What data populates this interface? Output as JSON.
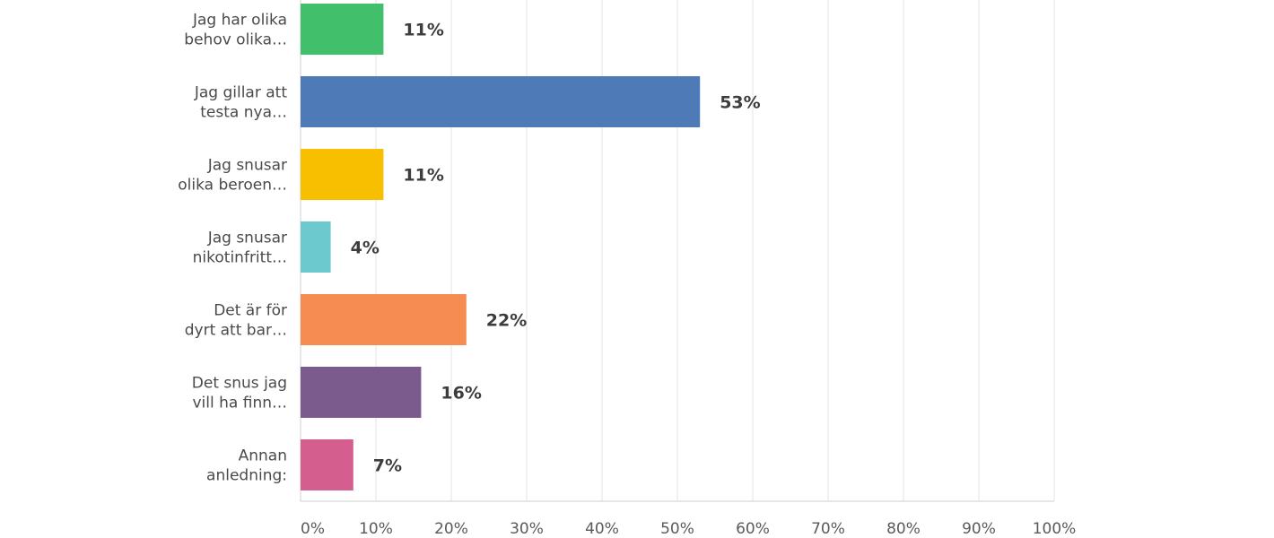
{
  "chart_data": {
    "type": "bar",
    "orientation": "horizontal",
    "title": "",
    "xlabel": "",
    "ylabel": "",
    "xlim": [
      0,
      100
    ],
    "grid": true,
    "categories": [
      {
        "lines": [
          "Jag har olika",
          "behov olika…"
        ],
        "value": 11,
        "value_label": "11%",
        "color": "#41bf6a"
      },
      {
        "lines": [
          "Jag gillar att",
          "testa nya…"
        ],
        "value": 53,
        "value_label": "53%",
        "color": "#4e7ab7"
      },
      {
        "lines": [
          "Jag snusar",
          "olika beroen…"
        ],
        "value": 11,
        "value_label": "11%",
        "color": "#f7bf00"
      },
      {
        "lines": [
          "Jag snusar",
          "nikotinfritt…"
        ],
        "value": 4,
        "value_label": "4%",
        "color": "#6cc9cd"
      },
      {
        "lines": [
          "Det är för",
          "dyrt att bar…"
        ],
        "value": 22,
        "value_label": "22%",
        "color": "#f78c52"
      },
      {
        "lines": [
          "Det snus jag",
          "vill ha finn…"
        ],
        "value": 16,
        "value_label": "16%",
        "color": "#7b5a8d"
      },
      {
        "lines": [
          "Annan",
          "anledning:"
        ],
        "value": 7,
        "value_label": "7%",
        "color": "#d45f8f"
      }
    ],
    "ticks": [
      {
        "value": 0,
        "label": "0%"
      },
      {
        "value": 10,
        "label": "10%"
      },
      {
        "value": 20,
        "label": "20%"
      },
      {
        "value": 30,
        "label": "30%"
      },
      {
        "value": 40,
        "label": "40%"
      },
      {
        "value": 50,
        "label": "50%"
      },
      {
        "value": 60,
        "label": "60%"
      },
      {
        "value": 70,
        "label": "70%"
      },
      {
        "value": 80,
        "label": "80%"
      },
      {
        "value": 90,
        "label": "90%"
      },
      {
        "value": 100,
        "label": "100%"
      }
    ]
  }
}
